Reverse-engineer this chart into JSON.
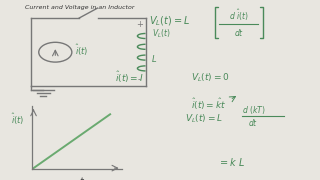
{
  "title": "Current and Voltage in an Inductor",
  "bg_color": "#e8e6e0",
  "left_bar_color": "#111111",
  "text_color": "#4a8a5a",
  "dark_color": "#555555",
  "line_color": "#777777",
  "graph_line_color": "#6aaa70"
}
